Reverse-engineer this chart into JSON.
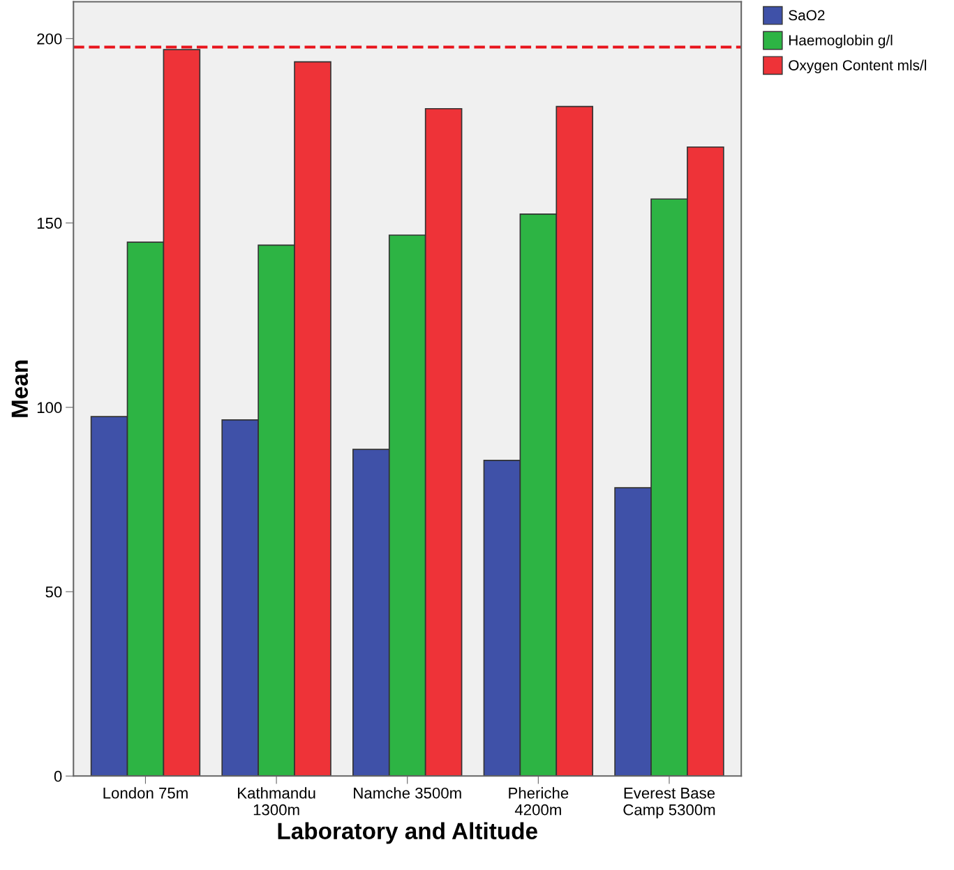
{
  "chart_data": {
    "type": "bar",
    "xlabel": "Laboratory and Altitude",
    "ylabel": "Mean",
    "categories": [
      "London 75m",
      "Kathmandu\n1300m",
      "Namche 3500m",
      "Pheriche\n4200m",
      "Everest Base\nCamp 5300m"
    ],
    "series": [
      {
        "name": "SaO2",
        "color": "#3f51a8",
        "values": [
          97.5,
          96.6,
          88.6,
          85.6,
          78.2
        ]
      },
      {
        "name": "Haemoglobin g/l",
        "color": "#2db444",
        "values": [
          144.8,
          144.0,
          146.7,
          152.4,
          156.5
        ]
      },
      {
        "name": "Oxygen Content mls/l",
        "color": "#ee3338",
        "values": [
          197.0,
          193.7,
          181.0,
          181.6,
          170.6
        ]
      }
    ],
    "ylim": [
      0,
      210
    ],
    "yticks": [
      0,
      50,
      100,
      150,
      200
    ],
    "grid": false,
    "legend": "top right",
    "ref_lines": [
      {
        "axis": "y",
        "value": 197.7,
        "color": "#e8141c",
        "line_style": "dashed"
      }
    ]
  }
}
